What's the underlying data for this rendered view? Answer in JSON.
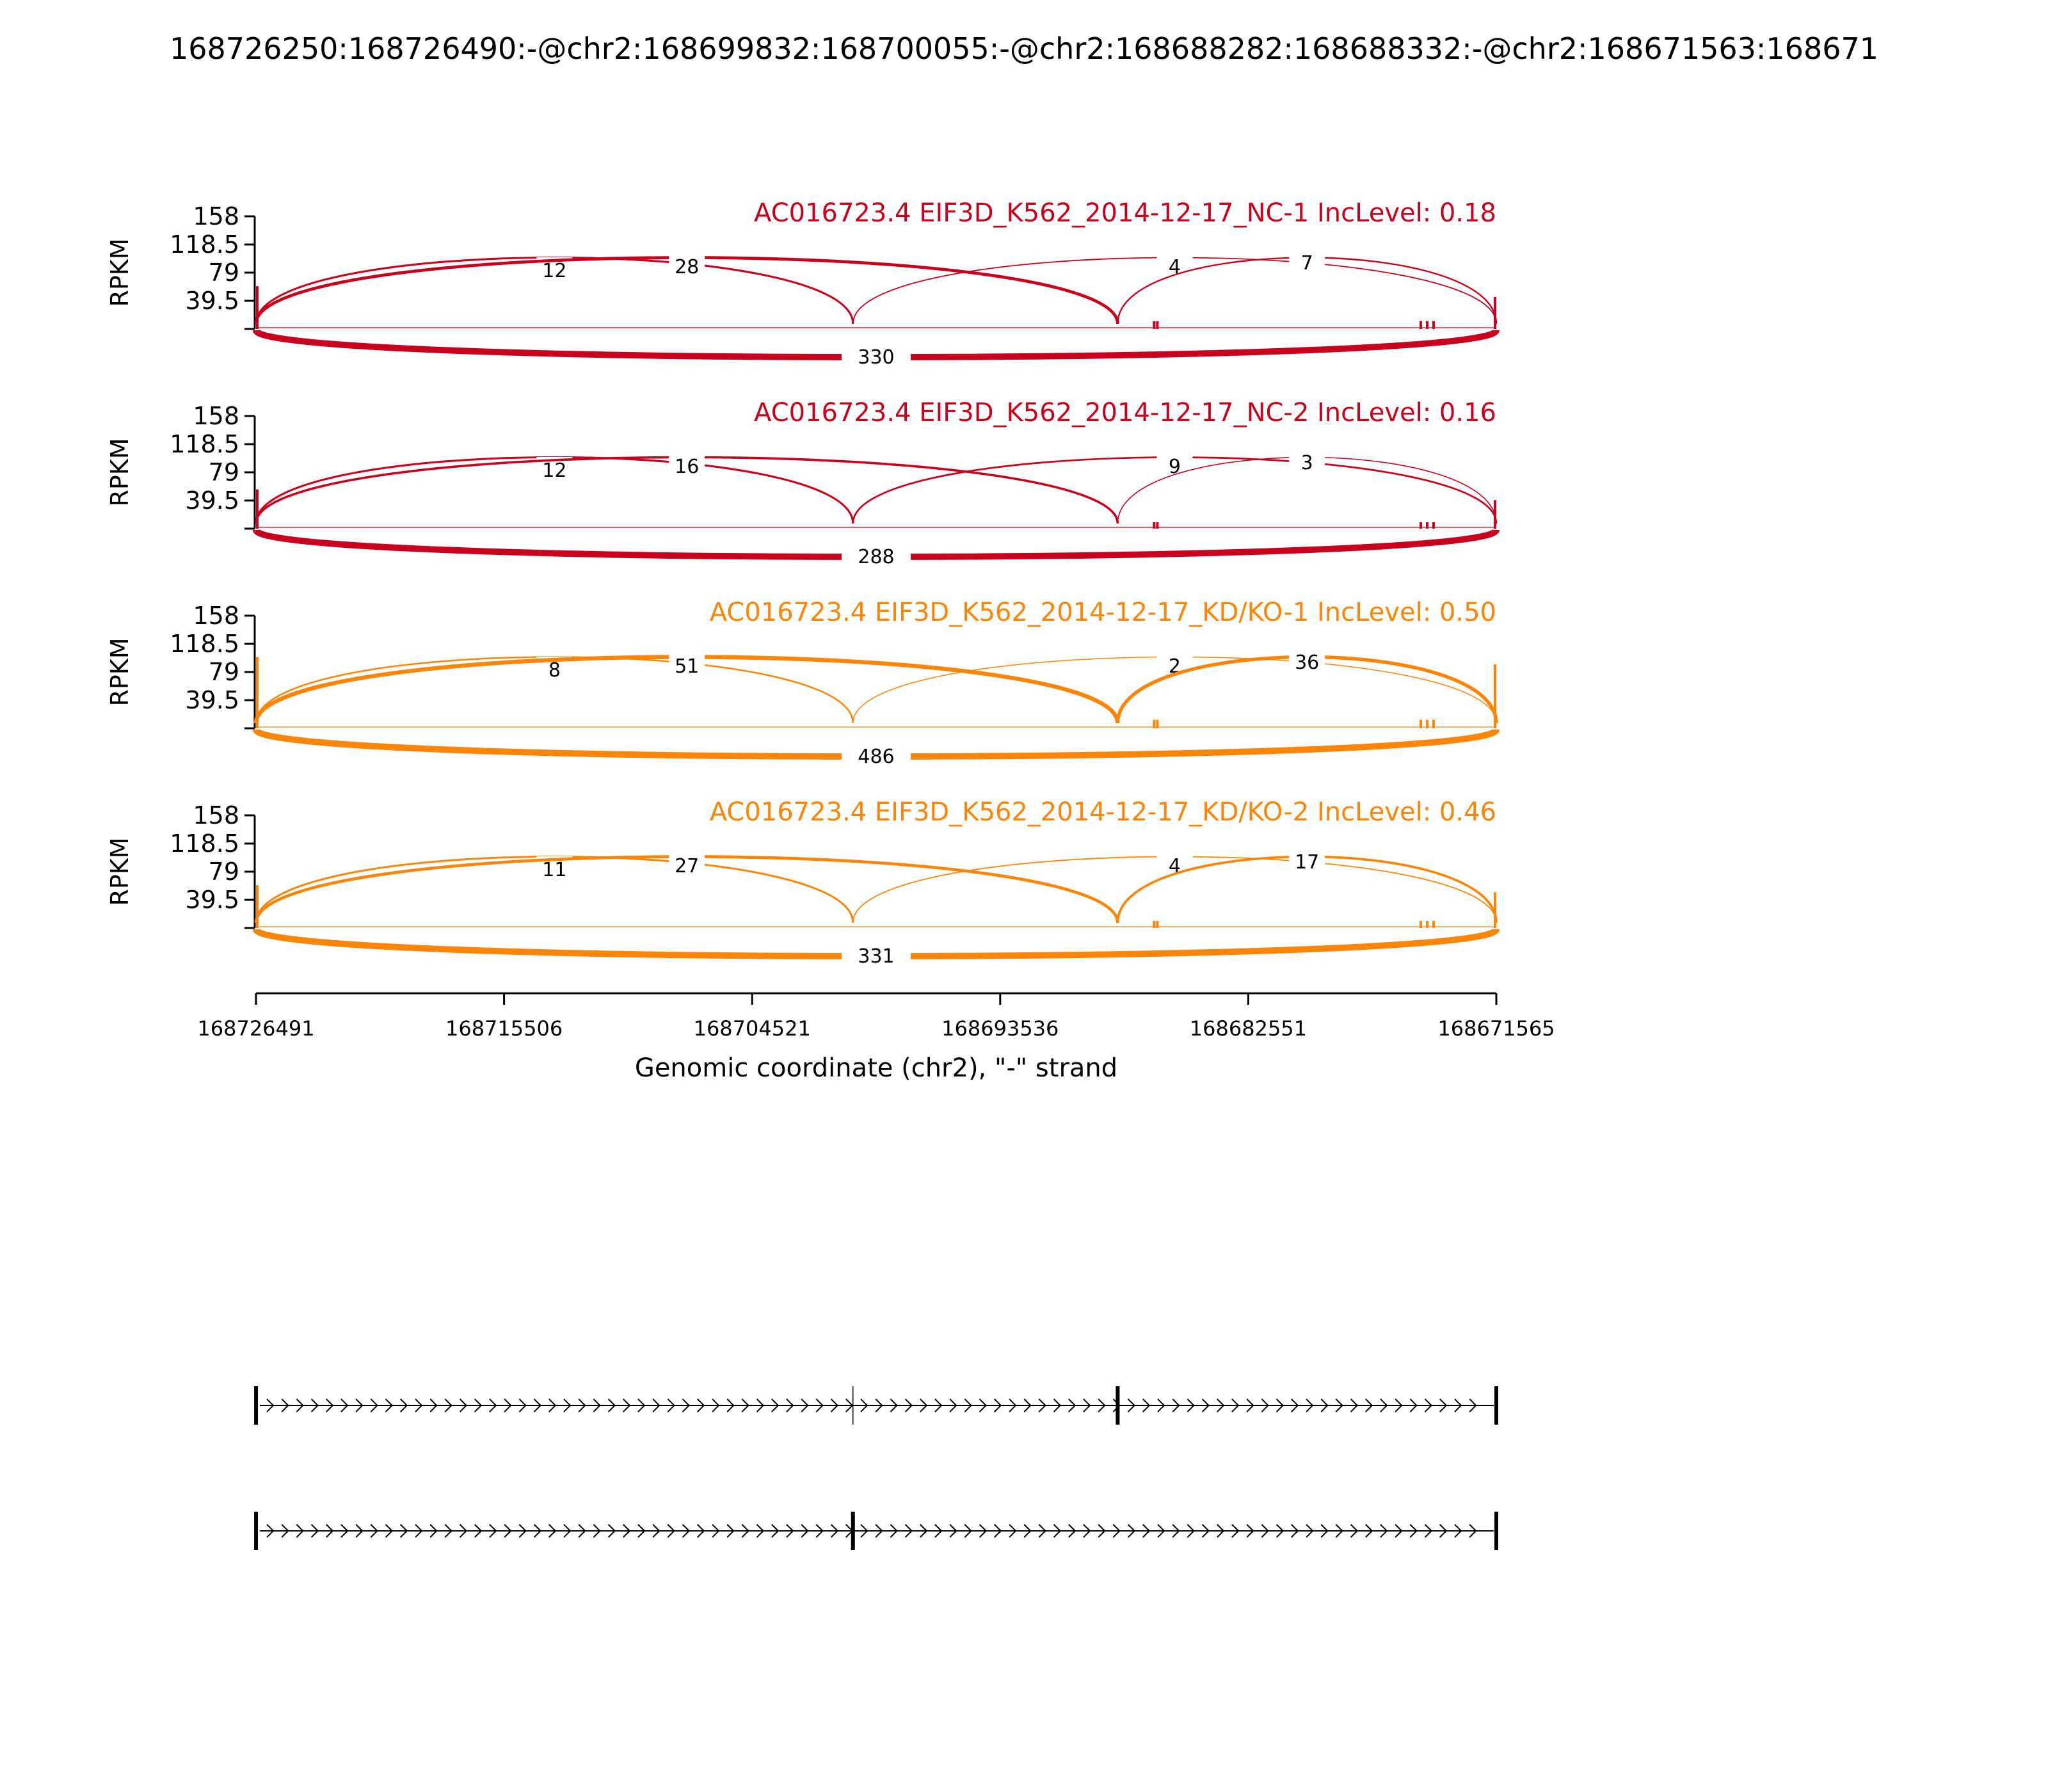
{
  "title": "168726250:168726490:-@chr2:168699832:168700055:-@chr2:168688282:168688332:-@chr2:168671563:168671",
  "chart_data": {
    "type": "sashimi",
    "xlabel": "Genomic coordinate (chr2), \"-\" strand",
    "ylabel": "RPKM",
    "x_ticks": [
      "168726491",
      "168715506",
      "168704521",
      "168693536",
      "168682551",
      "168671565"
    ],
    "x_range": [
      168726491,
      168671565
    ],
    "y_ticks": [
      "158",
      "118.5",
      "79",
      "39.5"
    ],
    "y_range": [
      0,
      158
    ],
    "colors": {
      "NC": "#c8001e",
      "KD": "#fb8507"
    },
    "panels": [
      {
        "title": "AC016723.4 EIF3D_K562_2014-12-17_NC-1 IncLevel: 0.18",
        "group": "NC",
        "junctions": {
          "e1_e2": "12",
          "e1_e3": "28",
          "e2_e4": "4",
          "e3_e4": "7",
          "e1_e4": "330"
        },
        "edge_left": 60,
        "edge_right": 45,
        "peak": 11
      },
      {
        "title": "AC016723.4 EIF3D_K562_2014-12-17_NC-2 IncLevel: 0.16",
        "group": "NC",
        "junctions": {
          "e1_e2": "12",
          "e1_e3": "16",
          "e2_e4": "9",
          "e3_e4": "3",
          "e1_e4": "288"
        },
        "edge_left": 55,
        "edge_right": 40,
        "peak": 9
      },
      {
        "title": "AC016723.4 EIF3D_K562_2014-12-17_KD/KO-1 IncLevel: 0.50",
        "group": "KD",
        "junctions": {
          "e1_e2": "8",
          "e1_e3": "51",
          "e2_e4": "2",
          "e3_e4": "36",
          "e1_e4": "486"
        },
        "edge_left": 100,
        "edge_right": 90,
        "peak": 12
      },
      {
        "title": "AC016723.4 EIF3D_K562_2014-12-17_KD/KO-2 IncLevel: 0.46",
        "group": "KD",
        "junctions": {
          "e1_e2": "11",
          "e1_e3": "27",
          "e2_e4": "4",
          "e3_e4": "17",
          "e1_e4": "331"
        },
        "edge_left": 60,
        "edge_right": 50,
        "peak": 10
      }
    ],
    "exon_coords": {
      "e1": 168726490,
      "e2": 168700055,
      "e3": 168688332,
      "e4": 168671565
    },
    "isoforms": [
      {
        "exons": [
          "e1",
          "e3",
          "e4"
        ]
      },
      {
        "exons": [
          "e1",
          "e2",
          "e4"
        ]
      }
    ]
  }
}
